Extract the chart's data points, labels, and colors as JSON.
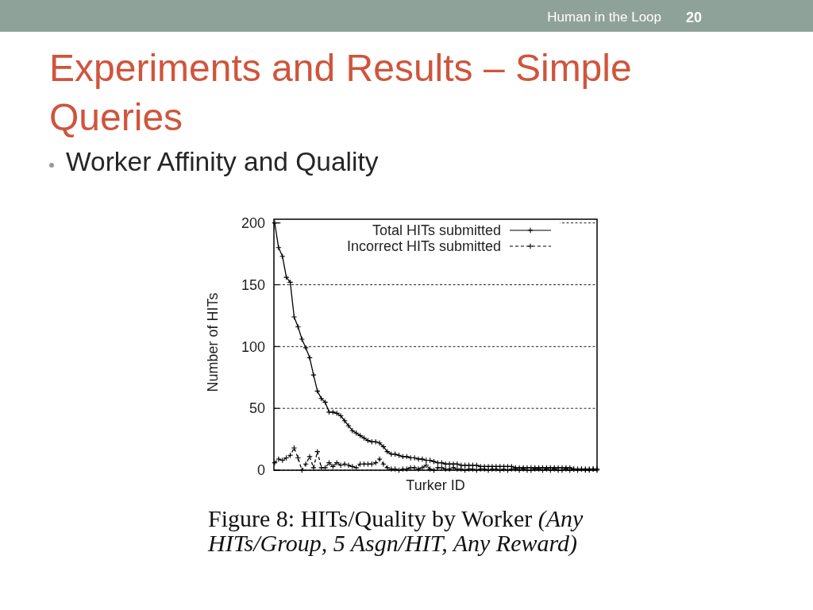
{
  "chart_data": {
    "type": "line",
    "title": "Experiments and Results – Simple Queries",
    "subtitle": "Worker Affinity and Quality",
    "xlabel": "Turker ID",
    "ylabel": "Number of HITs",
    "categories": [
      null,
      null,
      null,
      null,
      null,
      null,
      null,
      null,
      null,
      null,
      null,
      null,
      null,
      null,
      null,
      null,
      null,
      null,
      null,
      null,
      null,
      null,
      null,
      null,
      null,
      null,
      null,
      null,
      null,
      null,
      null,
      null,
      null,
      null,
      null,
      null,
      null,
      null,
      null,
      null,
      null,
      null,
      null,
      null,
      null,
      null,
      null,
      null,
      null,
      null,
      null,
      null,
      null,
      null,
      null,
      null,
      null,
      null,
      null,
      null,
      null,
      null,
      null,
      null,
      null,
      null,
      null,
      null,
      null,
      null,
      null,
      null,
      null,
      null,
      null,
      null,
      null,
      null,
      null,
      null,
      null,
      null,
      null,
      null
    ],
    "series": [
      {
        "name": "Total HITs submitted",
        "color": "#000000",
        "marker": "cross",
        "line_style": "solid",
        "values": [
          200,
          180,
          173,
          156,
          152,
          124,
          116,
          106,
          99,
          91,
          77,
          64,
          58,
          55,
          47,
          47,
          46,
          44,
          40,
          36,
          32,
          30,
          28,
          26,
          24,
          23,
          23,
          22,
          19,
          15,
          13,
          13,
          12,
          11,
          11,
          10,
          10,
          9,
          9,
          8,
          8,
          7,
          6,
          6,
          5,
          5,
          5,
          5,
          4,
          4,
          4,
          4,
          4,
          3,
          3,
          3,
          3,
          3,
          3,
          3,
          3,
          3,
          2,
          2,
          2,
          2,
          2,
          2,
          2,
          2,
          2,
          2,
          2,
          2,
          2,
          2,
          2,
          1,
          1,
          1,
          1,
          1,
          1,
          1
        ]
      },
      {
        "name": "Incorrect HITs submitted",
        "color": "#000000",
        "marker": "cross",
        "line_style": "dashed",
        "values": [
          6,
          9,
          8,
          10,
          12,
          18,
          10,
          0,
          5,
          11,
          2,
          15,
          2,
          2,
          6,
          3,
          6,
          4,
          5,
          4,
          3,
          2,
          5,
          5,
          5,
          5,
          6,
          9,
          5,
          2,
          1,
          1,
          0,
          1,
          1,
          2,
          2,
          1,
          2,
          4,
          1,
          0,
          2,
          2,
          1,
          1,
          2,
          1,
          1,
          0,
          1,
          1,
          0,
          1,
          1,
          0,
          1,
          1,
          0,
          1,
          0,
          1,
          1,
          0,
          1,
          0,
          0,
          1,
          1,
          0,
          1,
          0,
          1,
          0,
          0,
          1,
          0,
          1,
          0,
          1,
          0,
          0,
          1,
          0
        ]
      }
    ],
    "ylim": [
      0,
      203
    ],
    "yticks": [
      0,
      50,
      100,
      150,
      200
    ],
    "grid": "y",
    "legend": "top right",
    "annotations": [
      "Figure 8: HITs/Quality by Worker (Any HITs/Group, 5 Asgn/HIT, Any Reward)",
      "Human in the Loop",
      "20"
    ]
  }
}
